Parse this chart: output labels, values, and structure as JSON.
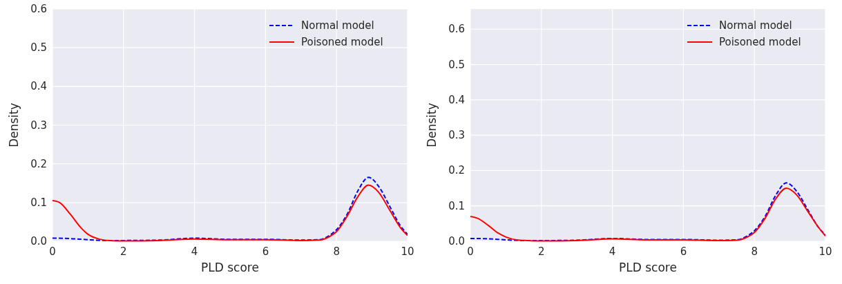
{
  "chart_data": [
    {
      "type": "line",
      "xlabel": "PLD score",
      "ylabel": "Density",
      "xlim": [
        0,
        10
      ],
      "ylim": [
        0,
        0.6
      ],
      "xticks": [
        0,
        2,
        4,
        6,
        8,
        10
      ],
      "yticks": [
        {
          "value": 0,
          "label": "0.0"
        },
        0.1,
        0.2,
        0.3,
        0.4,
        0.5,
        0.6
      ],
      "grid": true,
      "legend": "top right",
      "x": [
        0,
        0.5,
        1,
        1.5,
        2,
        3,
        4,
        5,
        6,
        7,
        7.5,
        7.8,
        8,
        8.3,
        8.6,
        8.9,
        9.2,
        9.5,
        9.8,
        10
      ],
      "series": [
        {
          "name": "Normal model",
          "color": "#0000ff",
          "line_style": "dashed",
          "values": [
            0.008,
            0.007,
            0.004,
            0.002,
            0.002,
            0.003,
            0.008,
            0.005,
            0.005,
            0.003,
            0.004,
            0.015,
            0.03,
            0.07,
            0.13,
            0.165,
            0.14,
            0.09,
            0.04,
            0.018
          ]
        },
        {
          "name": "Poisoned model",
          "color": "#ff0000",
          "line_style": "solid",
          "x": [
            0,
            0.2,
            0.5,
            0.8,
            1,
            1.3,
            1.6,
            2,
            3,
            4,
            5,
            6,
            7,
            7.5,
            7.8,
            8,
            8.3,
            8.6,
            8.9,
            9.2,
            9.5,
            9.8,
            10
          ],
          "values": [
            0.105,
            0.1,
            0.07,
            0.035,
            0.018,
            0.006,
            0.002,
            0.001,
            0.002,
            0.006,
            0.004,
            0.004,
            0.002,
            0.003,
            0.012,
            0.025,
            0.065,
            0.115,
            0.145,
            0.125,
            0.08,
            0.035,
            0.015
          ]
        }
      ]
    },
    {
      "type": "line",
      "xlabel": "PLD score",
      "ylabel": "Density",
      "xlim": [
        0,
        10
      ],
      "ylim": [
        0,
        0.657
      ],
      "xticks": [
        0,
        2,
        4,
        6,
        8,
        10
      ],
      "yticks": [
        {
          "value": 0,
          "label": "0.0"
        },
        0.1,
        0.2,
        0.3,
        0.4,
        0.5,
        0.6
      ],
      "grid": true,
      "legend": "top right",
      "x": [
        0,
        0.5,
        1,
        1.5,
        2,
        3,
        4,
        5,
        6,
        7,
        7.5,
        7.8,
        8,
        8.3,
        8.6,
        8.9,
        9.2,
        9.5,
        9.8,
        10
      ],
      "series": [
        {
          "name": "Normal model",
          "color": "#0000ff",
          "line_style": "dashed",
          "values": [
            0.008,
            0.007,
            0.004,
            0.002,
            0.002,
            0.003,
            0.008,
            0.005,
            0.005,
            0.003,
            0.004,
            0.015,
            0.03,
            0.07,
            0.13,
            0.165,
            0.14,
            0.09,
            0.04,
            0.018
          ]
        },
        {
          "name": "Poisoned model",
          "color": "#ff0000",
          "line_style": "solid",
          "x": [
            0,
            0.2,
            0.5,
            0.8,
            1,
            1.3,
            1.6,
            2,
            3,
            4,
            5,
            6,
            7,
            7.5,
            7.8,
            8,
            8.3,
            8.6,
            8.9,
            9.2,
            9.5,
            9.8,
            10
          ],
          "values": [
            0.07,
            0.065,
            0.045,
            0.022,
            0.012,
            0.004,
            0.002,
            0.001,
            0.002,
            0.007,
            0.004,
            0.004,
            0.002,
            0.003,
            0.012,
            0.025,
            0.065,
            0.12,
            0.15,
            0.13,
            0.085,
            0.04,
            0.015
          ]
        }
      ]
    }
  ]
}
